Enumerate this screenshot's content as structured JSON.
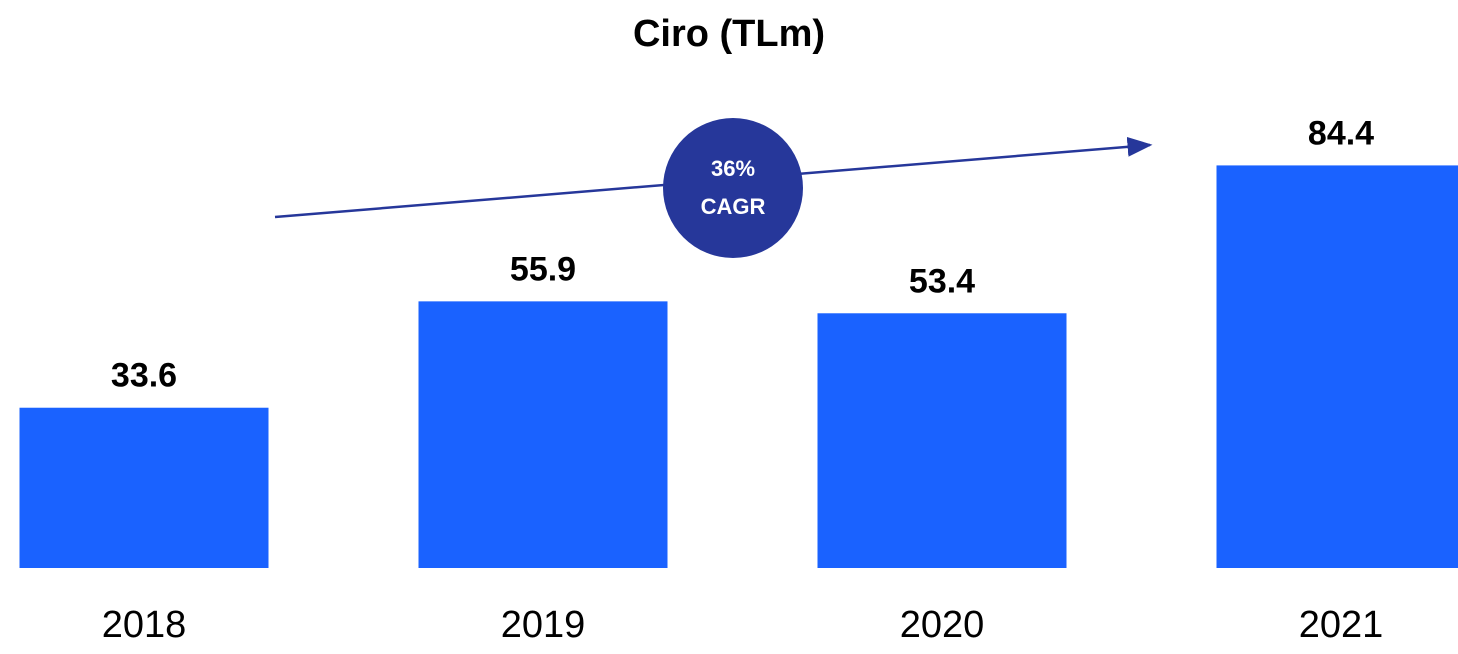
{
  "chart_data": {
    "type": "bar",
    "title": "Ciro (TLm)",
    "categories": [
      "2018",
      "2019",
      "2020",
      "2021"
    ],
    "values": [
      33.6,
      55.9,
      53.4,
      84.4
    ],
    "color": "#1a62ff",
    "ylim": [
      0,
      100
    ],
    "annotation": [
      "36%",
      "CAGR"
    ],
    "annotation_color": "#26379a"
  }
}
